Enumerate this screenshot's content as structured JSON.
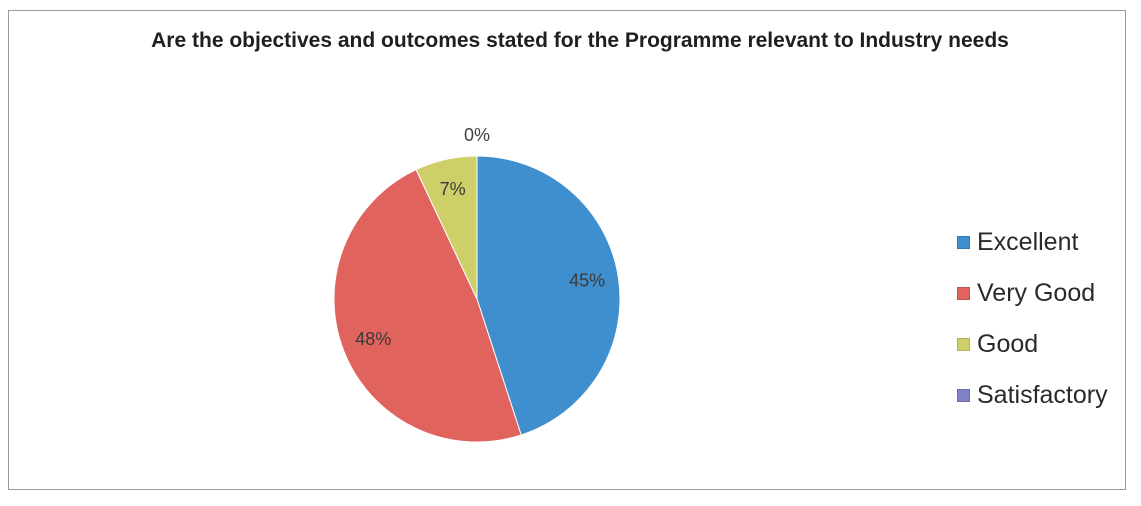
{
  "chart_data": {
    "type": "pie",
    "title": "Are the objectives and outcomes stated for the Programme relevant to Industry needs",
    "categories": [
      "Excellent",
      "Very Good",
      "Good",
      "Satisfactory"
    ],
    "values": [
      45,
      48,
      7,
      0
    ],
    "value_labels": [
      "45%",
      "48%",
      "7%",
      "0%"
    ],
    "colors": [
      "#3f8fcf",
      "#e0635e",
      "#cfcf6a",
      "#8080c8"
    ],
    "legend_position": "right"
  }
}
